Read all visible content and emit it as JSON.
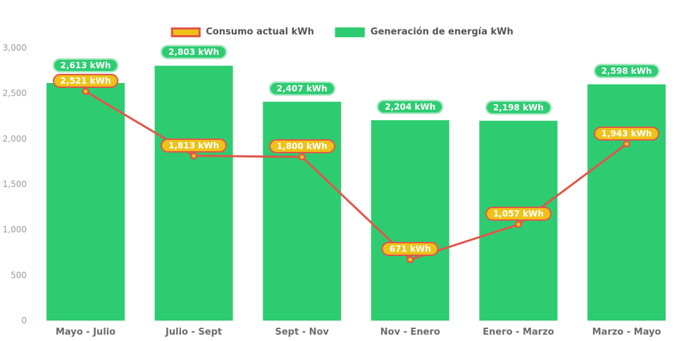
{
  "chart_data": {
    "type": "bar",
    "subtype": "bar-line-combo",
    "categories": [
      "Mayo - Julio",
      "Julio - Sept",
      "Sept - Nov",
      "Nov - Enero",
      "Enero - Marzo",
      "Marzo - Mayo"
    ],
    "series": [
      {
        "name": "Consumo actual kWh",
        "type": "line",
        "values": [
          2521,
          1813,
          1800,
          671,
          1057,
          1943
        ],
        "color": "#E0564A",
        "marker_color": "#EEC218"
      },
      {
        "name": "Generación de energía kWh",
        "type": "bar",
        "values": [
          2613,
          2803,
          2407,
          2204,
          2198,
          2598
        ],
        "color": "#2ECC71"
      }
    ],
    "value_suffix": "kWh",
    "data_labels": {
      "bar": [
        "2,613 kWh",
        "2,803 kWh",
        "2,407 kWh",
        "2,204 kWh",
        "2,198 kWh",
        "2,598 kWh"
      ],
      "line": [
        "2,521 kWh",
        "1,813 kWh",
        "1,800 kWh",
        "671 kWh",
        "1,057 kWh",
        "1,943 kWh"
      ]
    },
    "ylim": [
      0,
      3000
    ],
    "ytick_step": 500,
    "ytick_labels": [
      "0",
      "500",
      "1,000",
      "1,500",
      "2,000",
      "2,500",
      "3,000"
    ],
    "legend_position": "top",
    "grid": false,
    "title": "",
    "xlabel": "",
    "ylabel": "",
    "colors": {
      "bar": "#2ECC71",
      "line": "#E0564A",
      "marker_fill": "#EEC218",
      "bar_label_bg": "#2ECC71",
      "line_label_bg": "#EEC218",
      "line_label_border": "#E0564A",
      "axis_text": "#999999",
      "category_text": "#6B6B6B",
      "legend_text": "#555555",
      "background": "#FFFFFF"
    }
  }
}
